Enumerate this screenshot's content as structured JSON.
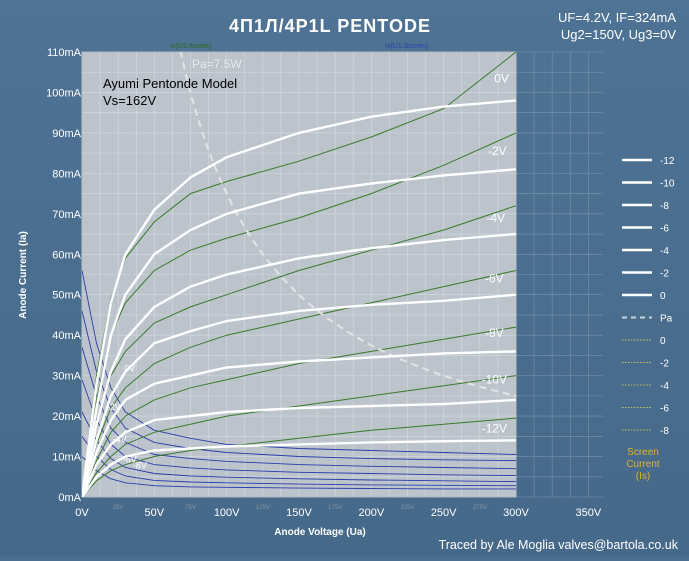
{
  "header": {
    "title": "4П1Л/4P1L PENTODE",
    "conditions_line1": "UF=4.2V, IF=324mA",
    "conditions_line2": "Ug2=150V, Ug3=0V",
    "footer": "Traced by Ale Moglia valves@bartola.co.uk"
  },
  "chart_data": {
    "type": "line",
    "title": "4П1Л/4P1L PENTODE",
    "xlabel": "Anode Voltage (Ua)",
    "ylabel": "Anode Current (Ia)",
    "xlim": [
      0,
      350
    ],
    "ylim": [
      0,
      110
    ],
    "grid": true,
    "x_ticks": [
      "0V",
      "50V",
      "100V",
      "150V",
      "200V",
      "250V",
      "300V",
      "350V"
    ],
    "x_minor_ticks": [
      "25V",
      "75V",
      "125V",
      "175V",
      "225V",
      "275V"
    ],
    "y_ticks": [
      "0mA",
      "10mA",
      "20mA",
      "30mA",
      "40mA",
      "50mA",
      "60mA",
      "70mA",
      "80mA",
      "90mA",
      "100mA",
      "110mA"
    ],
    "legend_position": "right",
    "legend": {
      "entries": [
        "-12",
        "-10",
        "-8",
        "-6",
        "-4",
        "-2",
        "0",
        "Pa",
        "0",
        "-2",
        "-4",
        "-6",
        "-8"
      ],
      "screen_title": "Screen Current (Is)"
    },
    "sim_labels": {
      "anode": "Ix(U1:Anode)",
      "screen": "Ix(U1:Screen)"
    },
    "annotations": {
      "model_name": "Ayumi Pentonde Model",
      "model_vs": "Vs=162V",
      "pa": "Pa=7.5W",
      "curve_labels": [
        "0V",
        "-2V",
        "-4V",
        "-6V",
        "-8V",
        "-10V",
        "-12V"
      ],
      "screen_labels": [
        "0V",
        "-2V",
        "-4V",
        "-6V",
        "-8V"
      ]
    },
    "pa_watts": 7.5,
    "anode_series": [
      {
        "name": "0V",
        "points": [
          [
            0,
            0
          ],
          [
            10,
            28
          ],
          [
            20,
            48
          ],
          [
            30,
            60
          ],
          [
            50,
            71
          ],
          [
            75,
            79
          ],
          [
            100,
            84
          ],
          [
            150,
            90
          ],
          [
            200,
            94
          ],
          [
            250,
            96.5
          ],
          [
            300,
            98
          ]
        ]
      },
      {
        "name": "-2V",
        "points": [
          [
            0,
            0
          ],
          [
            10,
            22
          ],
          [
            20,
            40
          ],
          [
            30,
            50
          ],
          [
            50,
            60
          ],
          [
            75,
            66
          ],
          [
            100,
            70
          ],
          [
            150,
            75
          ],
          [
            200,
            77.5
          ],
          [
            250,
            79.5
          ],
          [
            300,
            81
          ]
        ]
      },
      {
        "name": "-4V",
        "points": [
          [
            0,
            0
          ],
          [
            10,
            18
          ],
          [
            20,
            31
          ],
          [
            30,
            39
          ],
          [
            50,
            47
          ],
          [
            75,
            52
          ],
          [
            100,
            55
          ],
          [
            150,
            59
          ],
          [
            200,
            61.5
          ],
          [
            250,
            63.5
          ],
          [
            300,
            65
          ]
        ]
      },
      {
        "name": "-6V",
        "points": [
          [
            0,
            0
          ],
          [
            10,
            14
          ],
          [
            20,
            25
          ],
          [
            30,
            31
          ],
          [
            50,
            38
          ],
          [
            75,
            41
          ],
          [
            100,
            43.5
          ],
          [
            150,
            46
          ],
          [
            200,
            47.5
          ],
          [
            250,
            48.5
          ],
          [
            300,
            50
          ]
        ]
      },
      {
        "name": "-8V",
        "points": [
          [
            0,
            0
          ],
          [
            10,
            11
          ],
          [
            20,
            19
          ],
          [
            30,
            24
          ],
          [
            50,
            28
          ],
          [
            75,
            30
          ],
          [
            100,
            32
          ],
          [
            150,
            33.5
          ],
          [
            200,
            34.5
          ],
          [
            250,
            35.5
          ],
          [
            300,
            36
          ]
        ]
      },
      {
        "name": "-10V",
        "points": [
          [
            0,
            0
          ],
          [
            10,
            8
          ],
          [
            20,
            13
          ],
          [
            30,
            16
          ],
          [
            50,
            19
          ],
          [
            75,
            20
          ],
          [
            100,
            21
          ],
          [
            150,
            22
          ],
          [
            200,
            22.5
          ],
          [
            250,
            23
          ],
          [
            300,
            24
          ]
        ]
      },
      {
        "name": "-12V",
        "points": [
          [
            0,
            0
          ],
          [
            10,
            5
          ],
          [
            20,
            8
          ],
          [
            30,
            10
          ],
          [
            50,
            11.5
          ],
          [
            75,
            12
          ],
          [
            100,
            12.5
          ],
          [
            150,
            13
          ],
          [
            200,
            13.5
          ],
          [
            250,
            13.8
          ],
          [
            300,
            14
          ]
        ]
      }
    ],
    "model_series": [
      {
        "name": "0V",
        "points": [
          [
            0,
            0
          ],
          [
            10,
            30
          ],
          [
            20,
            49
          ],
          [
            30,
            59
          ],
          [
            50,
            68
          ],
          [
            75,
            75
          ],
          [
            100,
            78
          ],
          [
            150,
            83
          ],
          [
            200,
            89
          ],
          [
            250,
            96
          ],
          [
            300,
            110
          ]
        ]
      },
      {
        "name": "-2V",
        "points": [
          [
            0,
            0
          ],
          [
            10,
            24
          ],
          [
            20,
            40
          ],
          [
            30,
            48
          ],
          [
            50,
            56
          ],
          [
            75,
            61
          ],
          [
            100,
            64
          ],
          [
            150,
            69
          ],
          [
            200,
            75
          ],
          [
            250,
            82
          ],
          [
            300,
            90
          ]
        ]
      },
      {
        "name": "-4V",
        "points": [
          [
            0,
            0
          ],
          [
            10,
            18
          ],
          [
            20,
            30
          ],
          [
            30,
            36
          ],
          [
            50,
            43
          ],
          [
            75,
            47
          ],
          [
            100,
            50
          ],
          [
            150,
            56
          ],
          [
            200,
            61
          ],
          [
            250,
            66
          ],
          [
            300,
            72
          ]
        ]
      },
      {
        "name": "-6V",
        "points": [
          [
            0,
            0
          ],
          [
            10,
            13
          ],
          [
            20,
            22
          ],
          [
            30,
            27
          ],
          [
            50,
            33
          ],
          [
            75,
            37
          ],
          [
            100,
            40
          ],
          [
            150,
            44
          ],
          [
            200,
            48
          ],
          [
            250,
            52
          ],
          [
            300,
            56
          ]
        ]
      },
      {
        "name": "-8V",
        "points": [
          [
            0,
            0
          ],
          [
            10,
            9
          ],
          [
            20,
            16
          ],
          [
            30,
            20
          ],
          [
            50,
            24
          ],
          [
            75,
            27
          ],
          [
            100,
            29
          ],
          [
            150,
            33
          ],
          [
            200,
            36
          ],
          [
            250,
            39
          ],
          [
            300,
            42
          ]
        ]
      },
      {
        "name": "-10V",
        "points": [
          [
            0,
            0
          ],
          [
            10,
            6
          ],
          [
            20,
            10
          ],
          [
            30,
            13
          ],
          [
            50,
            16
          ],
          [
            75,
            18
          ],
          [
            100,
            20
          ],
          [
            150,
            22.5
          ],
          [
            200,
            25
          ],
          [
            250,
            27.5
          ],
          [
            300,
            30
          ]
        ]
      },
      {
        "name": "-12V",
        "points": [
          [
            0,
            0
          ],
          [
            10,
            4
          ],
          [
            20,
            6.5
          ],
          [
            30,
            8
          ],
          [
            50,
            10
          ],
          [
            75,
            11.5
          ],
          [
            100,
            12.5
          ],
          [
            150,
            14.5
          ],
          [
            200,
            16.5
          ],
          [
            250,
            18
          ],
          [
            300,
            19.5
          ]
        ]
      }
    ],
    "screen_series": [
      {
        "name": "0V",
        "points": [
          [
            0,
            56
          ],
          [
            10,
            38
          ],
          [
            20,
            27
          ],
          [
            30,
            21
          ],
          [
            50,
            16.5
          ],
          [
            75,
            14.5
          ],
          [
            100,
            13
          ],
          [
            150,
            12
          ],
          [
            200,
            11.5
          ],
          [
            250,
            11
          ],
          [
            300,
            10.5
          ]
        ]
      },
      {
        "name": "-2V",
        "points": [
          [
            0,
            46
          ],
          [
            10,
            31
          ],
          [
            20,
            22
          ],
          [
            30,
            17
          ],
          [
            50,
            13.5
          ],
          [
            75,
            12
          ],
          [
            100,
            11
          ],
          [
            150,
            10
          ],
          [
            200,
            9.5
          ],
          [
            250,
            9.2
          ],
          [
            300,
            9
          ]
        ]
      },
      {
        "name": "-4V",
        "points": [
          [
            0,
            37
          ],
          [
            10,
            25
          ],
          [
            20,
            17
          ],
          [
            30,
            13.5
          ],
          [
            50,
            10.5
          ],
          [
            75,
            9.5
          ],
          [
            100,
            8.8
          ],
          [
            150,
            8
          ],
          [
            200,
            7.6
          ],
          [
            250,
            7.3
          ],
          [
            300,
            7
          ]
        ]
      },
      {
        "name": "-6V",
        "points": [
          [
            0,
            29
          ],
          [
            10,
            19
          ],
          [
            20,
            13
          ],
          [
            30,
            10
          ],
          [
            50,
            8
          ],
          [
            75,
            7.2
          ],
          [
            100,
            6.7
          ],
          [
            150,
            6.1
          ],
          [
            200,
            5.8
          ],
          [
            250,
            5.5
          ],
          [
            300,
            5.3
          ]
        ]
      },
      {
        "name": "-8V",
        "points": [
          [
            0,
            21
          ],
          [
            10,
            14
          ],
          [
            20,
            9.5
          ],
          [
            30,
            7.3
          ],
          [
            50,
            5.8
          ],
          [
            75,
            5.2
          ],
          [
            100,
            4.9
          ],
          [
            150,
            4.5
          ],
          [
            200,
            4.2
          ],
          [
            250,
            4
          ],
          [
            300,
            3.8
          ]
        ]
      },
      {
        "name": "-10V",
        "points": [
          [
            0,
            15
          ],
          [
            10,
            10
          ],
          [
            20,
            6.8
          ],
          [
            30,
            5.2
          ],
          [
            50,
            4.1
          ],
          [
            75,
            3.7
          ],
          [
            100,
            3.5
          ],
          [
            150,
            3.2
          ],
          [
            200,
            3
          ],
          [
            250,
            2.9
          ],
          [
            300,
            2.8
          ]
        ]
      },
      {
        "name": "-12V",
        "points": [
          [
            0,
            10
          ],
          [
            10,
            6.5
          ],
          [
            20,
            4.5
          ],
          [
            30,
            3.5
          ],
          [
            50,
            2.8
          ],
          [
            75,
            2.5
          ],
          [
            100,
            2.4
          ],
          [
            150,
            2.2
          ],
          [
            200,
            2.1
          ],
          [
            250,
            2
          ],
          [
            300,
            2
          ]
        ]
      }
    ],
    "colors": {
      "panel_bg": "#bcc3cb",
      "outer_bg": "#4a6e8e",
      "anode_white": "#ffffff",
      "model_green": "#3a7a2a",
      "screen_blue": "#2a3caa",
      "pa_curve": "#e6e6e6",
      "legend_screen": "#c8c060",
      "screen_caption": "#e0b030"
    }
  }
}
